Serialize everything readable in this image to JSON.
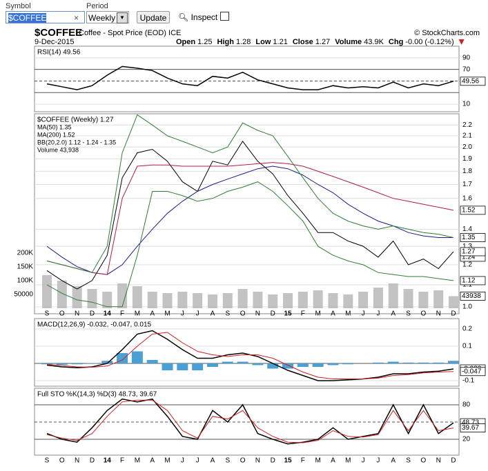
{
  "toolbar": {
    "symbol_label": "Symbol",
    "symbol": "$COFFEE",
    "period_label": "Period",
    "period": "Weekly",
    "update": "Update",
    "inspect": "Inspect"
  },
  "header": {
    "symbol": "$COFFEE",
    "name": "Coffee - Spot Price (EOD) ICE",
    "credit": "© StockCharts.com",
    "date": "9-Dec-2015",
    "quote": [
      {
        "label": "Open",
        "value": "1.25"
      },
      {
        "label": "High",
        "value": "1.28"
      },
      {
        "label": "Low",
        "value": "1.21"
      },
      {
        "label": "Close",
        "value": "1.27"
      },
      {
        "label": "Volume",
        "value": "43.9K"
      },
      {
        "label": "Chg",
        "value": "-0.00 (-0.12%)"
      }
    ]
  },
  "chart": {
    "categories": [
      "S",
      "O",
      "N",
      "D",
      "14",
      "F",
      "M",
      "A",
      "M",
      "J",
      "J",
      "A",
      "S",
      "O",
      "N",
      "D",
      "15",
      "F",
      "M",
      "A",
      "M",
      "J",
      "J",
      "A",
      "S",
      "O",
      "N",
      "D"
    ],
    "rsi": {
      "legend": [
        "RSI(14) 49.56"
      ],
      "ylim": [
        -3,
        110
      ],
      "yticks": [
        10,
        70,
        90
      ],
      "levels": [
        30,
        50,
        70
      ],
      "series": [
        {
          "name": "RSI",
          "color": "#000000",
          "values": [
            45,
            40,
            35,
            42,
            60,
            75,
            72,
            68,
            55,
            45,
            42,
            58,
            55,
            65,
            52,
            45,
            38,
            35,
            35,
            42,
            38,
            40,
            38,
            48,
            38,
            45,
            42,
            49.56
          ]
        }
      ]
    },
    "price": {
      "log": true,
      "ylim": [
        0.97,
        2.31
      ],
      "yticks": [
        {
          "value": 1.0,
          "label": "1.0"
        },
        1.1,
        1.2,
        1.3,
        1.4,
        1.6,
        1.7,
        1.8,
        1.9,
        {
          "value": 2.0,
          "label": "2.0"
        },
        2.1,
        2.2
      ],
      "legend": [
        "$COFFEE (Weekly) 1.27",
        "MA(50) 1.35",
        "MA(200) 1.52",
        "BB(20,2.0) 1.12 - 1.24 - 1.35",
        "Volume 43,938"
      ],
      "series": [
        {
          "name": "$COFFEE",
          "color": "#000000",
          "values": [
            1.17,
            1.12,
            1.08,
            1.12,
            1.25,
            1.75,
            1.95,
            1.98,
            1.88,
            1.72,
            1.65,
            1.88,
            1.85,
            2.05,
            1.88,
            1.78,
            1.62,
            1.5,
            1.38,
            1.38,
            1.33,
            1.3,
            1.24,
            1.33,
            1.2,
            1.23,
            1.18,
            1.27
          ]
        },
        {
          "name": "MA(50)",
          "color": "#1a1a8c",
          "values": [
            1.3,
            1.24,
            1.19,
            1.16,
            1.15,
            1.2,
            1.3,
            1.4,
            1.5,
            1.58,
            1.65,
            1.7,
            1.74,
            1.78,
            1.82,
            1.84,
            1.82,
            1.77,
            1.7,
            1.64,
            1.56,
            1.5,
            1.45,
            1.42,
            1.38,
            1.36,
            1.35,
            1.35
          ]
        },
        {
          "name": "MA(200)",
          "color": "#b01c3c",
          "values": [
            1.22,
            1.2,
            1.18,
            1.16,
            1.15,
            1.6,
            1.84,
            1.85,
            1.85,
            1.84,
            1.84,
            1.84,
            1.84,
            1.85,
            1.86,
            1.87,
            1.86,
            1.84,
            1.8,
            1.76,
            1.72,
            1.68,
            1.64,
            1.6,
            1.58,
            1.56,
            1.54,
            1.52
          ]
        },
        {
          "name": "BB upper",
          "color": "#2e7d32",
          "values": [
            1.22,
            1.2,
            1.18,
            1.16,
            1.3,
            1.95,
            2.3,
            2.2,
            2.1,
            2.05,
            2.0,
            1.95,
            2.0,
            2.22,
            2.15,
            2.1,
            1.92,
            1.75,
            1.6,
            1.5,
            1.45,
            1.42,
            1.4,
            1.42,
            1.4,
            1.38,
            1.37,
            1.35
          ]
        },
        {
          "name": "BB lower",
          "color": "#2e7d32",
          "values": [
            1.1,
            1.06,
            1.03,
            1.02,
            1.0,
            1.0,
            1.25,
            1.65,
            1.65,
            1.62,
            1.58,
            1.6,
            1.65,
            1.68,
            1.72,
            1.65,
            1.55,
            1.45,
            1.3,
            1.25,
            1.22,
            1.2,
            1.16,
            1.15,
            1.14,
            1.14,
            1.13,
            1.12
          ]
        }
      ],
      "bb_middle_last": 1.24,
      "volume_lim": [
        -20000,
        705000
      ],
      "volume_ticks": [
        {
          "value": 50000,
          "label": "50000"
        },
        {
          "value": 100000,
          "label": "100K"
        },
        {
          "value": 150000,
          "label": "150K"
        },
        {
          "value": 200000,
          "label": "200K"
        }
      ],
      "volume": {
        "name": "Volume",
        "color": "#b4b4b4",
        "values": [
          120000,
          100000,
          80000,
          70000,
          60000,
          90000,
          80000,
          60000,
          55000,
          60000,
          55000,
          50000,
          55000,
          70000,
          60000,
          50000,
          55000,
          60000,
          65000,
          55000,
          50000,
          60000,
          75000,
          90000,
          70000,
          60000,
          65000,
          43938
        ]
      }
    },
    "macd": {
      "legend": [
        "MACD(12,26,9) -0.032, -0.047, 0.015"
      ],
      "ylim": [
        -0.132,
        0.26
      ],
      "yticks": [
        -0.1,
        0.1,
        0.2
      ],
      "levels": [
        0
      ],
      "histogram": {
        "name": "Histogram",
        "color": "#4a9fd4",
        "values": [
          -0.005,
          -0.008,
          -0.005,
          0.002,
          0.015,
          0.06,
          0.07,
          0.02,
          -0.04,
          -0.04,
          -0.04,
          -0.02,
          0.01,
          0.01,
          -0.01,
          -0.03,
          -0.03,
          -0.02,
          -0.02,
          -0.01,
          -0.005,
          0,
          0.005,
          0.01,
          0.005,
          0.005,
          0.005,
          0.015
        ]
      },
      "series": [
        {
          "name": "MACD",
          "color": "#000000",
          "values": [
            -0.01,
            -0.02,
            -0.025,
            -0.02,
            0.0,
            0.08,
            0.17,
            0.19,
            0.14,
            0.08,
            0.03,
            0.03,
            0.05,
            0.06,
            0.04,
            0.0,
            -0.04,
            -0.07,
            -0.1,
            -0.1,
            -0.095,
            -0.09,
            -0.08,
            -0.06,
            -0.06,
            -0.05,
            -0.045,
            -0.032
          ]
        },
        {
          "name": "Signal",
          "color": "#d02020",
          "values": [
            -0.005,
            -0.012,
            -0.02,
            -0.022,
            -0.015,
            0.02,
            0.1,
            0.17,
            0.18,
            0.12,
            0.07,
            0.05,
            0.04,
            0.05,
            0.05,
            0.03,
            -0.01,
            -0.05,
            -0.08,
            -0.09,
            -0.09,
            -0.09,
            -0.085,
            -0.07,
            -0.065,
            -0.055,
            -0.05,
            -0.047
          ]
        }
      ]
    },
    "sto": {
      "legend": [
        "Full STO %K(14,3) %D(3) 48.73, 39.67"
      ],
      "ylim": [
        -7.6,
        108.8
      ],
      "yticks": [
        20,
        80
      ],
      "levels": [
        20,
        50,
        80
      ],
      "series": [
        {
          "name": "%K",
          "color": "#000000",
          "values": [
            30,
            20,
            15,
            40,
            70,
            90,
            85,
            90,
            60,
            25,
            20,
            70,
            50,
            80,
            30,
            20,
            12,
            15,
            20,
            40,
            20,
            25,
            30,
            80,
            30,
            80,
            30,
            48.73
          ]
        },
        {
          "name": "%D",
          "color": "#d02020",
          "values": [
            28,
            22,
            18,
            30,
            60,
            85,
            88,
            88,
            70,
            35,
            22,
            60,
            55,
            70,
            40,
            25,
            15,
            14,
            18,
            35,
            25,
            24,
            28,
            70,
            35,
            70,
            35,
            39.67
          ]
        }
      ]
    }
  }
}
